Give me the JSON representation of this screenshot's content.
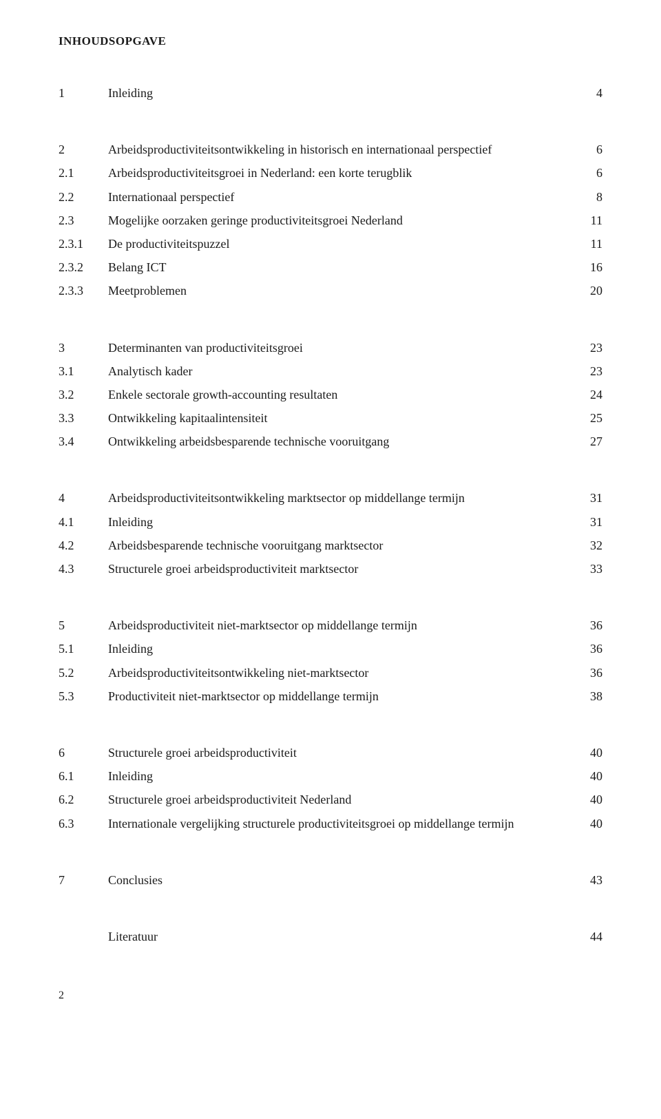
{
  "heading": "INHOUDSOPGAVE",
  "sections": [
    {
      "entries": [
        {
          "num": "1",
          "title": "Inleiding",
          "page": "4"
        }
      ]
    },
    {
      "entries": [
        {
          "num": "2",
          "title": "Arbeidsproductiviteitsontwikkeling in historisch en internationaal perspectief",
          "page": "6"
        },
        {
          "num": "2.1",
          "title": "Arbeidsproductiviteitsgroei in Nederland: een korte terugblik",
          "page": "6"
        },
        {
          "num": "2.2",
          "title": "Internationaal perspectief",
          "page": "8"
        },
        {
          "num": "2.3",
          "title": "Mogelijke oorzaken geringe productiviteitsgroei Nederland",
          "page": "11"
        },
        {
          "num": "2.3.1",
          "title": "De productiviteitspuzzel",
          "page": "11"
        },
        {
          "num": "2.3.2",
          "title": "Belang ICT",
          "page": "16"
        },
        {
          "num": "2.3.3",
          "title": "Meetproblemen",
          "page": "20"
        }
      ]
    },
    {
      "entries": [
        {
          "num": "3",
          "title": "Determinanten van productiviteitsgroei",
          "page": "23"
        },
        {
          "num": "3.1",
          "title": "Analytisch kader",
          "page": "23"
        },
        {
          "num": "3.2",
          "title": "Enkele sectorale growth-accounting resultaten",
          "page": "24"
        },
        {
          "num": "3.3",
          "title": "Ontwikkeling kapitaalintensiteit",
          "page": "25"
        },
        {
          "num": "3.4",
          "title": "Ontwikkeling arbeidsbesparende technische vooruitgang",
          "page": "27"
        }
      ]
    },
    {
      "entries": [
        {
          "num": "4",
          "title": "Arbeidsproductiviteitsontwikkeling marktsector op middellange termijn",
          "page": "31"
        },
        {
          "num": "4.1",
          "title": "Inleiding",
          "page": "31"
        },
        {
          "num": "4.2",
          "title": "Arbeidsbesparende technische vooruitgang marktsector",
          "page": "32"
        },
        {
          "num": "4.3",
          "title": "Structurele groei arbeidsproductiviteit marktsector",
          "page": "33"
        }
      ]
    },
    {
      "entries": [
        {
          "num": "5",
          "title": "Arbeidsproductiviteit niet-marktsector op middellange termijn",
          "page": "36"
        },
        {
          "num": "5.1",
          "title": "Inleiding",
          "page": "36"
        },
        {
          "num": "5.2",
          "title": "Arbeidsproductiviteitsontwikkeling niet-marktsector",
          "page": "36"
        },
        {
          "num": "5.3",
          "title": "Productiviteit niet-marktsector op middellange termijn",
          "page": "38"
        }
      ]
    },
    {
      "entries": [
        {
          "num": "6",
          "title": "Structurele groei arbeidsproductiviteit",
          "page": "40"
        },
        {
          "num": "6.1",
          "title": "Inleiding",
          "page": "40"
        },
        {
          "num": "6.2",
          "title": "Structurele groei arbeidsproductiviteit Nederland",
          "page": "40"
        },
        {
          "num": "6.3",
          "title": "Internationale vergelijking structurele productiviteitsgroei op middellange termijn",
          "page": "40"
        }
      ]
    },
    {
      "entries": [
        {
          "num": "7",
          "title": "Conclusies",
          "page": "43"
        }
      ]
    },
    {
      "entries": [
        {
          "num": "",
          "title": "Literatuur",
          "page": "44"
        }
      ]
    }
  ],
  "pageNumber": "2"
}
